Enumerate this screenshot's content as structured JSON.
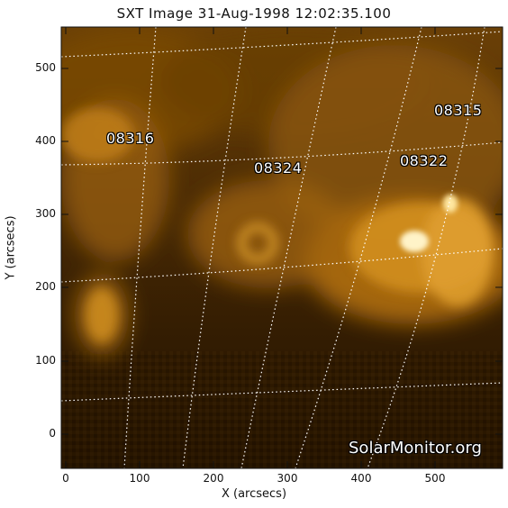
{
  "title": "SXT Image 31-Aug-1998 12:02:35.100",
  "xlabel": "X (arcsecs)",
  "ylabel": "Y (arcsecs)",
  "xticks": [
    "0",
    "100",
    "200",
    "300",
    "400",
    "500"
  ],
  "yticks": [
    "0",
    "100",
    "200",
    "300",
    "400",
    "500"
  ],
  "active_regions": [
    "08316",
    "08324",
    "08322",
    "08315"
  ],
  "watermark": "SolarMonitor.org",
  "colors": {
    "sun_dark": "#2a1500",
    "sun_bright": "#ffe08a",
    "grid": "#ffffff",
    "frame": "#111111"
  }
}
